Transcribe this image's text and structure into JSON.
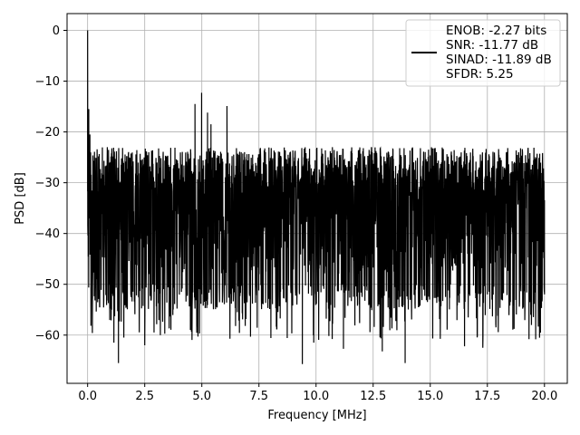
{
  "chart_data": {
    "type": "line",
    "title": "",
    "xlabel": "Frequency [MHz]",
    "ylabel": "PSD [dB]",
    "xlim": [
      -0.9,
      21.0
    ],
    "ylim": [
      -69.5,
      3.3
    ],
    "grid": true,
    "legend_position": "top-right",
    "xticks": [
      0.0,
      2.5,
      5.0,
      7.5,
      10.0,
      12.5,
      15.0,
      17.5,
      20.0
    ],
    "xtick_labels": [
      "0.0",
      "2.5",
      "5.0",
      "7.5",
      "10.0",
      "12.5",
      "15.0",
      "17.5",
      "20.0"
    ],
    "yticks": [
      0,
      -10,
      -20,
      -30,
      -40,
      -50,
      -60
    ],
    "ytick_labels": [
      "0",
      "−10",
      "−20",
      "−30",
      "−40",
      "−50",
      "−60"
    ],
    "legend_lines": [
      "ENOB: -2.27 bits",
      "SNR: -11.77 dB",
      "SINAD: -11.89 dB",
      "SFDR: 5.25"
    ],
    "series": [
      {
        "color": "#000000",
        "noise_floor": {
          "x_range": [
            0.0,
            20.0
          ],
          "upper_envelope_db": -22,
          "lower_envelope_db": -50,
          "typical_min_db": -55,
          "deepest_min_db": -66
        },
        "features": [
          {
            "x": 0.0,
            "y": 0.0
          },
          {
            "x": 0.05,
            "y": -15.5
          },
          {
            "x": 0.1,
            "y": -20.5
          },
          {
            "x": 0.15,
            "y": -39.0
          },
          {
            "x": 0.4,
            "y": -49.0
          },
          {
            "x": 0.5,
            "y": -49.2
          },
          {
            "x": 1.05,
            "y": -55.0
          },
          {
            "x": 1.15,
            "y": -61.5
          },
          {
            "x": 1.35,
            "y": -65.5
          },
          {
            "x": 1.9,
            "y": -52.5
          },
          {
            "x": 2.5,
            "y": -62.0
          },
          {
            "x": 4.5,
            "y": -59.0
          },
          {
            "x": 4.7,
            "y": -14.5
          },
          {
            "x": 4.99,
            "y": -12.3
          },
          {
            "x": 5.25,
            "y": -16.2
          },
          {
            "x": 5.4,
            "y": -18.5
          },
          {
            "x": 6.1,
            "y": -14.9
          },
          {
            "x": 9.4,
            "y": -65.7
          },
          {
            "x": 9.9,
            "y": -61.5
          },
          {
            "x": 11.2,
            "y": -62.7
          },
          {
            "x": 12.9,
            "y": -63.2
          },
          {
            "x": 13.9,
            "y": -65.5
          },
          {
            "x": 16.5,
            "y": -62.2
          },
          {
            "x": 17.3,
            "y": -62.5
          },
          {
            "x": 19.4,
            "y": -56.0
          },
          {
            "x": 20.0,
            "y": -52.0
          }
        ]
      }
    ]
  }
}
